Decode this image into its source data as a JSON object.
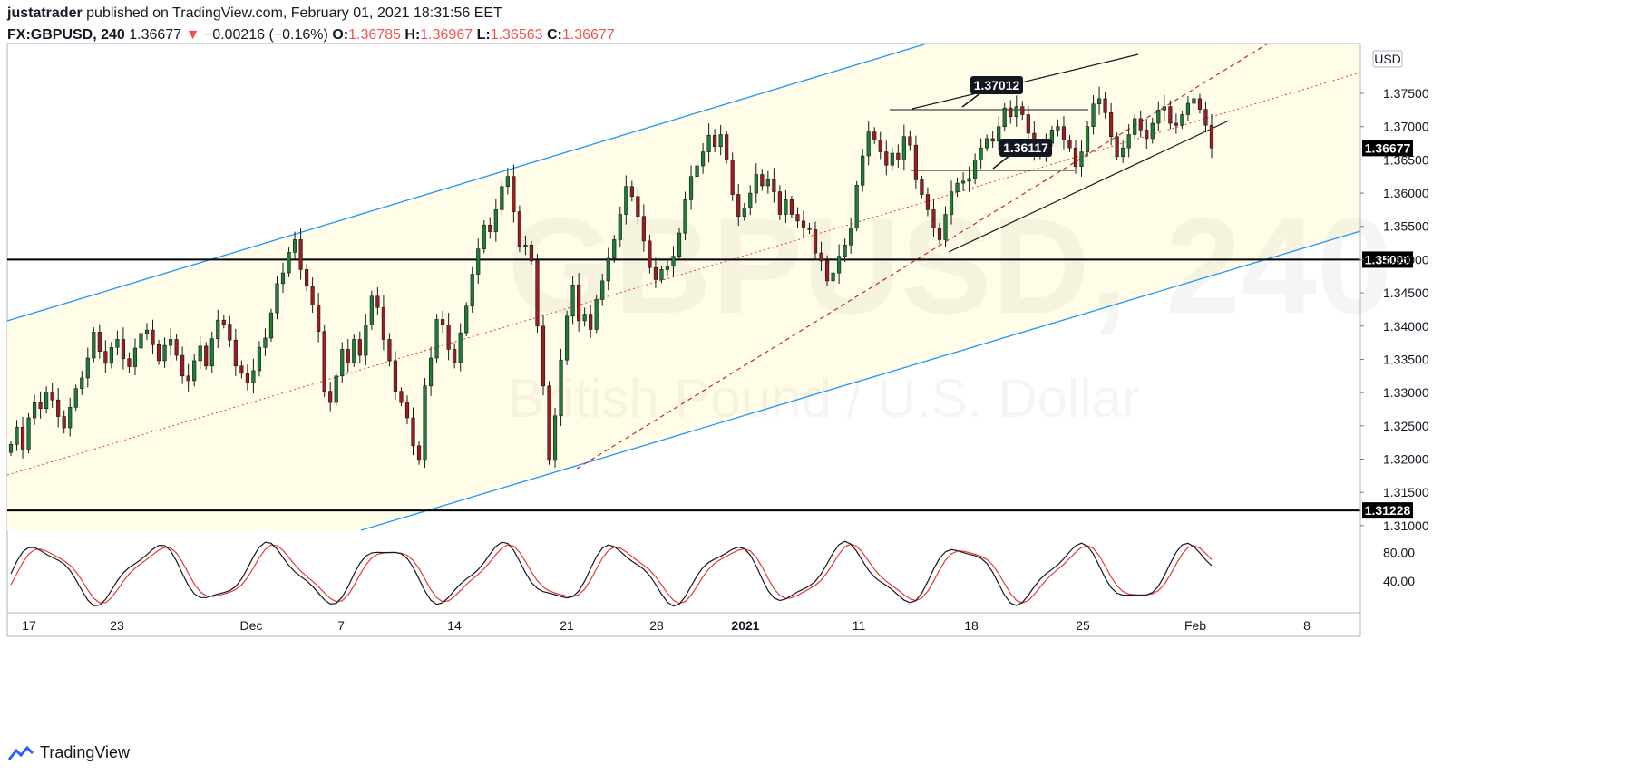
{
  "header": {
    "author": "justatrader",
    "published_text": "published on TradingView.com, February 01, 2021 18:31:56 EET"
  },
  "symbol_line": {
    "symbol": "FX:GBPUSD, 240",
    "price": "1.36677",
    "arrow": "▼",
    "change": "−0.00216 (−0.16%)",
    "open_label": "O:",
    "open": "1.36785",
    "high_label": "H:",
    "high": "1.36967",
    "low_label": "L:",
    "low": "1.36563",
    "close_label": "C:",
    "close": "1.36677"
  },
  "watermark": {
    "symbol": "GBPUSD, 240",
    "description": "British Pound / U.S. Dollar"
  },
  "footer": {
    "brand": "TradingView"
  },
  "colors": {
    "up": "#1e7e34",
    "down": "#9e1c1c",
    "channel": "#2196f3",
    "channel_fill": "#fffde7",
    "midline": "#e53935",
    "osc_k": "#131722",
    "osc_d": "#e53935",
    "osc_band": "#fff9c4"
  },
  "chart_data": {
    "type": "candlestick",
    "currency": "USD",
    "y_axis_ticks": [
      "1.37500",
      "1.37000",
      "1.36500",
      "1.36000",
      "1.35500",
      "1.35000",
      "1.34500",
      "1.34000",
      "1.33500",
      "1.33000",
      "1.32500",
      "1.32000",
      "1.31500",
      "1.31000"
    ],
    "y_range": [
      1.3093,
      1.3825
    ],
    "x_axis_ticks": [
      "17",
      "23",
      "Dec",
      "7",
      "14",
      "21",
      "28",
      "2021",
      "11",
      "18",
      "25",
      "Feb",
      "8"
    ],
    "last_price": "1.36677",
    "horizontal_levels": [
      {
        "label": "1.35000",
        "value": 1.35
      },
      {
        "label": "1.31228",
        "value": 1.31228
      }
    ],
    "annotations": [
      {
        "label": "1.37012",
        "value": 1.37012
      },
      {
        "label": "1.36117",
        "value": 1.36117
      }
    ],
    "close_series": [
      1.3222,
      1.3248,
      1.3215,
      1.3262,
      1.3285,
      1.3276,
      1.3301,
      1.3289,
      1.3264,
      1.3247,
      1.3278,
      1.3306,
      1.3322,
      1.3352,
      1.3391,
      1.3362,
      1.3344,
      1.3368,
      1.338,
      1.3351,
      1.3339,
      1.3367,
      1.3389,
      1.3394,
      1.3372,
      1.3348,
      1.3371,
      1.338,
      1.3356,
      1.3325,
      1.3318,
      1.3348,
      1.337,
      1.334,
      1.3381,
      1.3409,
      1.3403,
      1.3379,
      1.334,
      1.3329,
      1.3315,
      1.3333,
      1.3368,
      1.3382,
      1.342,
      1.3464,
      1.348,
      1.3511,
      1.353,
      1.3485,
      1.346,
      1.3432,
      1.3392,
      1.3302,
      1.3285,
      1.3325,
      1.3365,
      1.3345,
      1.338,
      1.3356,
      1.3402,
      1.3445,
      1.3428,
      1.338,
      1.3348,
      1.3302,
      1.3285,
      1.3262,
      1.322,
      1.3198,
      1.331,
      1.3352,
      1.341,
      1.3402,
      1.3365,
      1.3345,
      1.339,
      1.343,
      1.3478,
      1.3516,
      1.3552,
      1.3542,
      1.3575,
      1.361,
      1.3625,
      1.3572,
      1.352,
      1.3522,
      1.3498,
      1.34,
      1.331,
      1.3198,
      1.3265,
      1.3349,
      1.3415,
      1.3462,
      1.3408,
      1.3418,
      1.3395,
      1.344,
      1.3468,
      1.3502,
      1.353,
      1.3568,
      1.361,
      1.3595,
      1.3565,
      1.3528,
      1.3488,
      1.347,
      1.3485,
      1.349,
      1.3505,
      1.354,
      1.359,
      1.3625,
      1.3641,
      1.3662,
      1.3687,
      1.367,
      1.3688,
      1.365,
      1.3598,
      1.3565,
      1.3578,
      1.36,
      1.3628,
      1.3611,
      1.362,
      1.3602,
      1.3568,
      1.359,
      1.3568,
      1.3558,
      1.3548,
      1.3545,
      1.351,
      1.3498,
      1.3468,
      1.348,
      1.3505,
      1.3522,
      1.3548,
      1.3612,
      1.3656,
      1.3692,
      1.368,
      1.3662,
      1.3642,
      1.366,
      1.365,
      1.3685,
      1.3672,
      1.362,
      1.3598,
      1.3575,
      1.3548,
      1.353,
      1.3568,
      1.3602,
      1.3615,
      1.3618,
      1.3622,
      1.365,
      1.3668,
      1.3682,
      1.3678,
      1.37,
      1.3728,
      1.3715,
      1.373,
      1.3718,
      1.369,
      1.3665,
      1.366,
      1.3675,
      1.3695,
      1.37,
      1.368,
      1.3668,
      1.364,
      1.3662,
      1.37,
      1.3734,
      1.3742,
      1.3721,
      1.3685,
      1.3655,
      1.3668,
      1.3688,
      1.3712,
      1.3695,
      1.3682,
      1.3705,
      1.3725,
      1.373,
      1.3705,
      1.3702,
      1.3718,
      1.3735,
      1.3742,
      1.3726,
      1.3702,
      1.3668
    ],
    "oscillator": {
      "levels": [
        "80.00",
        "40.00"
      ],
      "range": [
        0,
        100
      ]
    }
  }
}
